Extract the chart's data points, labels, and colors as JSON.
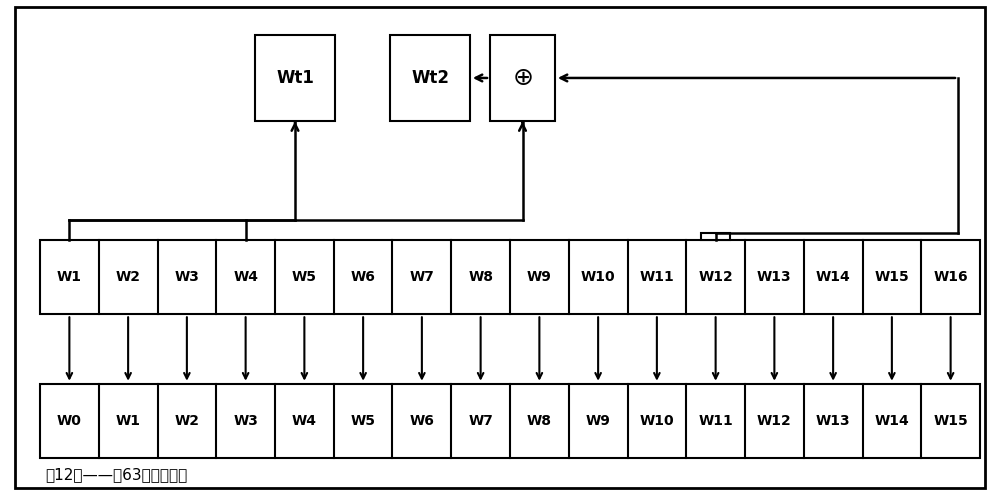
{
  "bg_color": "#ffffff",
  "upper_labels": [
    "W1",
    "W2",
    "W3",
    "W4",
    "W5",
    "W6",
    "W7",
    "W8",
    "W9",
    "W10",
    "W11",
    "W12",
    "W13",
    "W14",
    "W15",
    "W16"
  ],
  "lower_labels": [
    "W0",
    "W1",
    "W2",
    "W3",
    "W4",
    "W5",
    "W6",
    "W7",
    "W8",
    "W9",
    "W10",
    "W11",
    "W12",
    "W13",
    "W14",
    "W15"
  ],
  "n_cells": 16,
  "footer_text": "第12轮——第63轮动态赋値"
}
